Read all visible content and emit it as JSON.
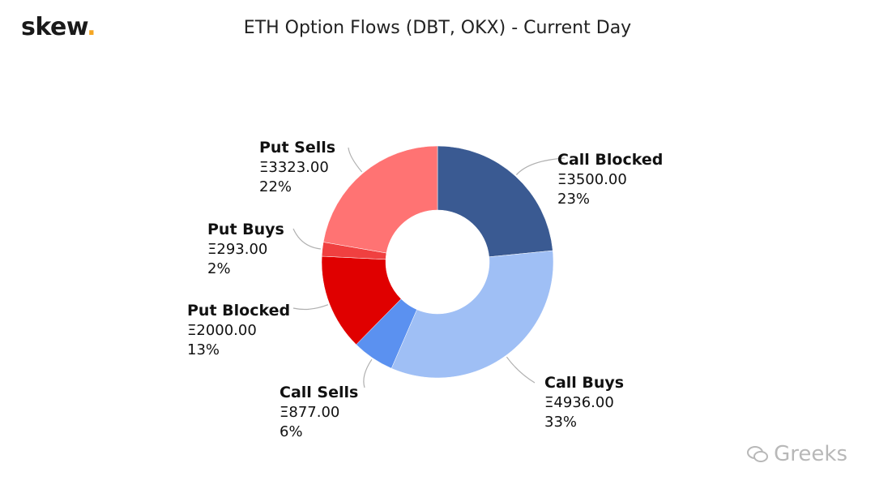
{
  "logo": {
    "text": "skew",
    "dot": "."
  },
  "title": "ETH Option Flows (DBT, OKX) - Current Day",
  "watermark": "Greeks",
  "chart_data": {
    "type": "pie",
    "donut": true,
    "title": "ETH Option Flows (DBT, OKX) - Current Day",
    "slices": [
      {
        "name": "Call Blocked",
        "amount": "Ξ3500.00",
        "percent": "23%",
        "value": 3500,
        "color": "#3a5a92"
      },
      {
        "name": "Call Buys",
        "amount": "Ξ4936.00",
        "percent": "33%",
        "value": 4936,
        "color": "#9fbff5"
      },
      {
        "name": "Call Sells",
        "amount": "Ξ877.00",
        "percent": "6%",
        "value": 877,
        "color": "#5b91f0"
      },
      {
        "name": "Put Blocked",
        "amount": "Ξ2000.00",
        "percent": "13%",
        "value": 2000,
        "color": "#e00000"
      },
      {
        "name": "Put Buys",
        "amount": "Ξ293.00",
        "percent": "2%",
        "value": 293,
        "color": "#f04040"
      },
      {
        "name": "Put Sells",
        "amount": "Ξ3323.00",
        "percent": "22%",
        "value": 3323,
        "color": "#ff7373"
      }
    ]
  }
}
